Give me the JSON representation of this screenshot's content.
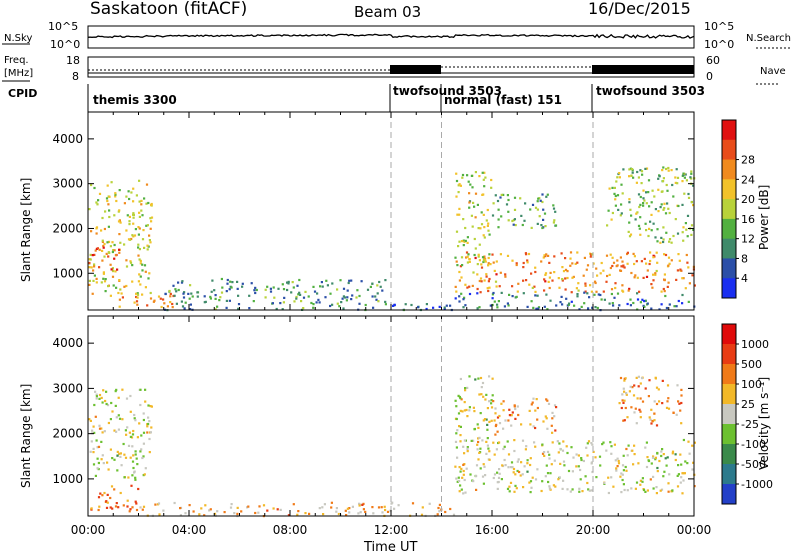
{
  "header": {
    "station": "Saskatoon (fitACF)",
    "beam": "Beam 03",
    "date": "16/Dec/2015"
  },
  "top_strips": {
    "nsky_label": "N.Sky",
    "nsky_ticks": [
      "10^5",
      "10^0"
    ],
    "nsearch_label": "N.Search",
    "nsearch_ticks": [
      "10^5",
      "10^0"
    ],
    "freq_label": "Freq.",
    "freq_unit": "[MHz]",
    "freq_ticks": [
      "18",
      "8"
    ],
    "nave_label": "Nave",
    "nave_ticks": [
      "60",
      "0"
    ],
    "cpid_label": "CPID"
  },
  "cpid_segments": [
    {
      "label": "themis 3300",
      "start_hour": 0.0
    },
    {
      "label": "twofsound 3503",
      "start_hour": 12.0
    },
    {
      "label": "normal (fast) 151",
      "start_hour": 14.0
    },
    {
      "label": "twofsound 3503",
      "start_hour": 20.0
    }
  ],
  "chart_data": [
    {
      "type": "heatmap",
      "title": "Power",
      "xlabel": "Time UT",
      "ylabel": "Slant Range [km]",
      "xlim_hours": [
        0,
        24
      ],
      "x_ticks": [
        "00:00",
        "04:00",
        "08:00",
        "12:00",
        "16:00",
        "20:00",
        "00:00"
      ],
      "ylim_km": [
        180,
        4600
      ],
      "y_ticks": [
        1000,
        2000,
        3000,
        4000
      ],
      "colorbar": {
        "label": "Power [dB]",
        "ticks": [
          "4",
          "8",
          "12",
          "16",
          "20",
          "24",
          "28"
        ],
        "colors": [
          "#1a2ff0",
          "#2b4fa8",
          "#3f8a6a",
          "#52b040",
          "#b8d23a",
          "#f2c22a",
          "#f08a1e",
          "#e84c1a",
          "#e01010"
        ]
      },
      "scatter_regions": [
        {
          "t0": 0.0,
          "t1": 2.5,
          "r0": 500,
          "r1": 3100,
          "level": 0.55
        },
        {
          "t0": 0.0,
          "t1": 1.2,
          "r0": 1100,
          "r1": 1600,
          "level": 0.82
        },
        {
          "t0": 1.0,
          "t1": 3.5,
          "r0": 250,
          "r1": 600,
          "level": 0.7
        },
        {
          "t0": 3.0,
          "t1": 12.0,
          "r0": 200,
          "r1": 900,
          "level": 0.3
        },
        {
          "t0": 12.0,
          "t1": 14.5,
          "r0": 200,
          "r1": 350,
          "level": 0.2
        },
        {
          "t0": 14.5,
          "t1": 24.0,
          "r0": 600,
          "r1": 1500,
          "level": 0.72
        },
        {
          "t0": 14.5,
          "t1": 16.0,
          "r0": 1200,
          "r1": 3300,
          "level": 0.5
        },
        {
          "t0": 16.0,
          "t1": 18.5,
          "r0": 2000,
          "r1": 2800,
          "level": 0.35
        },
        {
          "t0": 20.5,
          "t1": 24.0,
          "r0": 1700,
          "r1": 3400,
          "level": 0.45
        },
        {
          "t0": 14.5,
          "t1": 24.0,
          "r0": 200,
          "r1": 600,
          "level": 0.25
        }
      ]
    },
    {
      "type": "heatmap",
      "title": "Velocity",
      "xlabel": "Time UT",
      "ylabel": "Slant Range [km]",
      "xlim_hours": [
        0,
        24
      ],
      "x_ticks": [
        "00:00",
        "04:00",
        "08:00",
        "12:00",
        "16:00",
        "20:00",
        "00:00"
      ],
      "ylim_km": [
        180,
        4600
      ],
      "y_ticks": [
        1000,
        2000,
        3000,
        4000
      ],
      "colorbar": {
        "label": "Velocity [m s⁻¹]",
        "ticks": [
          "1000",
          "500",
          "100",
          "25",
          "-25",
          "-100",
          "-500",
          "-1000"
        ],
        "colors": [
          "#2340c8",
          "#2c7a8c",
          "#3a8a4a",
          "#6cc030",
          "#c8c8c0",
          "#f2b828",
          "#f07a18",
          "#e83c14",
          "#e00a0a"
        ]
      },
      "scatter_regions": [
        {
          "t0": 0.0,
          "t1": 2.5,
          "r0": 1000,
          "r1": 3000,
          "level": 0.5
        },
        {
          "t0": 0.0,
          "t1": 2.0,
          "r0": 300,
          "r1": 900,
          "level": 0.72
        },
        {
          "t0": 2.0,
          "t1": 14.5,
          "r0": 200,
          "r1": 500,
          "level": 0.62
        },
        {
          "t0": 14.5,
          "t1": 24.0,
          "r0": 700,
          "r1": 1900,
          "level": 0.5
        },
        {
          "t0": 14.5,
          "t1": 16.0,
          "r0": 1800,
          "r1": 3400,
          "level": 0.5
        },
        {
          "t0": 16.0,
          "t1": 18.5,
          "r0": 2000,
          "r1": 2800,
          "level": 0.65
        },
        {
          "t0": 21.0,
          "t1": 23.5,
          "r0": 2200,
          "r1": 3300,
          "level": 0.68
        }
      ]
    }
  ]
}
